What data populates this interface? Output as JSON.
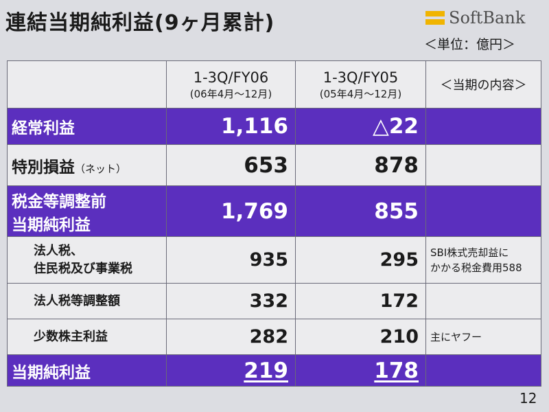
{
  "title": "連結当期純利益(9ヶ月累計)",
  "logo_text": "SoftBank",
  "unit": "＜単位：億円＞",
  "header": {
    "col1": {
      "period": "1-3Q/FY06",
      "range": "(06年4月～12月)"
    },
    "col2": {
      "period": "1-3Q/FY05",
      "range": "(05年4月～12月)"
    },
    "col3": "＜当期の内容＞"
  },
  "rows": [
    {
      "label": "経常利益",
      "fy06": "1,116",
      "fy05": "△22",
      "note": ""
    },
    {
      "label": "特別損益",
      "label_suffix": "（ネット）",
      "fy06": "653",
      "fy05": "878",
      "note": ""
    },
    {
      "label_line1": "税金等調整前",
      "label_line2": "当期純利益",
      "fy06": "1,769",
      "fy05": "855",
      "note": ""
    },
    {
      "label_line1": "法人税、",
      "label_line2": "住民税及び事業税",
      "fy06": "935",
      "fy05": "295",
      "note_line1": "SBI株式売却益に",
      "note_line2": "かかる税金費用588"
    },
    {
      "label": "法人税等調整額",
      "fy06": "332",
      "fy05": "172",
      "note": ""
    },
    {
      "label": "少数株主利益",
      "fy06": "282",
      "fy05": "210",
      "note": "主にヤフー"
    },
    {
      "label": "当期純利益",
      "fy06": "219",
      "fy05": "178",
      "note": ""
    }
  ],
  "page_number": "12",
  "colors": {
    "highlight": "#5b2fbe",
    "logo_bars": "#f0b400"
  }
}
